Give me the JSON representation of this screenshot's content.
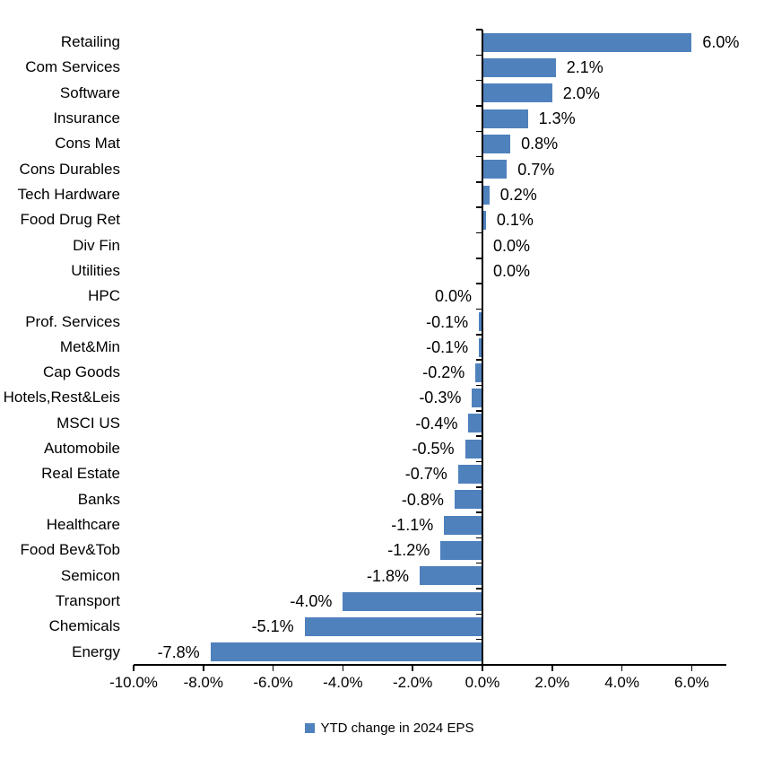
{
  "chart_data": {
    "type": "bar",
    "orientation": "horizontal",
    "title": "",
    "bar_color": "#4F81BD",
    "axis_color": "#000000",
    "grid": false,
    "xlim": [
      -10,
      7
    ],
    "x_tick_values": [
      -10,
      -8,
      -6,
      -4,
      -2,
      0,
      2,
      4,
      6
    ],
    "x_tick_labels": [
      "-10.0%",
      "-8.0%",
      "-6.0%",
      "-4.0%",
      "-2.0%",
      "0.0%",
      "2.0%",
      "4.0%",
      "6.0%"
    ],
    "legend": {
      "position": "bottom",
      "label": "YTD change in 2024 EPS",
      "swatch_color": "#4F81BD"
    },
    "items": [
      {
        "category": "Retailing",
        "value": 6.0,
        "label": "6.0%",
        "label_side": "right"
      },
      {
        "category": "Com Services",
        "value": 2.1,
        "label": "2.1%",
        "label_side": "right"
      },
      {
        "category": "Software",
        "value": 2.0,
        "label": "2.0%",
        "label_side": "right"
      },
      {
        "category": "Insurance",
        "value": 1.3,
        "label": "1.3%",
        "label_side": "right"
      },
      {
        "category": "Cons Mat",
        "value": 0.8,
        "label": "0.8%",
        "label_side": "right"
      },
      {
        "category": "Cons Durables",
        "value": 0.7,
        "label": "0.7%",
        "label_side": "right"
      },
      {
        "category": "Tech Hardware",
        "value": 0.2,
        "label": "0.2%",
        "label_side": "right"
      },
      {
        "category": "Food Drug Ret",
        "value": 0.1,
        "label": "0.1%",
        "label_side": "right"
      },
      {
        "category": "Div Fin",
        "value": 0.0,
        "label": "0.0%",
        "label_side": "right"
      },
      {
        "category": "Utilities",
        "value": 0.0,
        "label": "0.0%",
        "label_side": "right"
      },
      {
        "category": "HPC",
        "value": 0.0,
        "label": "0.0%",
        "label_side": "left"
      },
      {
        "category": "Prof. Services",
        "value": -0.1,
        "label": "-0.1%",
        "label_side": "left"
      },
      {
        "category": "Met&Min",
        "value": -0.1,
        "label": "-0.1%",
        "label_side": "left"
      },
      {
        "category": "Cap Goods",
        "value": -0.2,
        "label": "-0.2%",
        "label_side": "left"
      },
      {
        "category": "Hotels,Rest&Leis",
        "value": -0.3,
        "label": "-0.3%",
        "label_side": "left"
      },
      {
        "category": "MSCI US",
        "value": -0.4,
        "label": "-0.4%",
        "label_side": "left"
      },
      {
        "category": "Automobile",
        "value": -0.5,
        "label": "-0.5%",
        "label_side": "left"
      },
      {
        "category": "Real Estate",
        "value": -0.7,
        "label": "-0.7%",
        "label_side": "left"
      },
      {
        "category": "Banks",
        "value": -0.8,
        "label": "-0.8%",
        "label_side": "left"
      },
      {
        "category": "Healthcare",
        "value": -1.1,
        "label": "-1.1%",
        "label_side": "left"
      },
      {
        "category": "Food Bev&Tob",
        "value": -1.2,
        "label": "-1.2%",
        "label_side": "left"
      },
      {
        "category": "Semicon",
        "value": -1.8,
        "label": "-1.8%",
        "label_side": "left"
      },
      {
        "category": "Transport",
        "value": -4.0,
        "label": "-4.0%",
        "label_side": "left"
      },
      {
        "category": "Chemicals",
        "value": -5.1,
        "label": "-5.1%",
        "label_side": "left"
      },
      {
        "category": "Energy",
        "value": -7.8,
        "label": "-7.8%",
        "label_side": "left"
      }
    ]
  }
}
